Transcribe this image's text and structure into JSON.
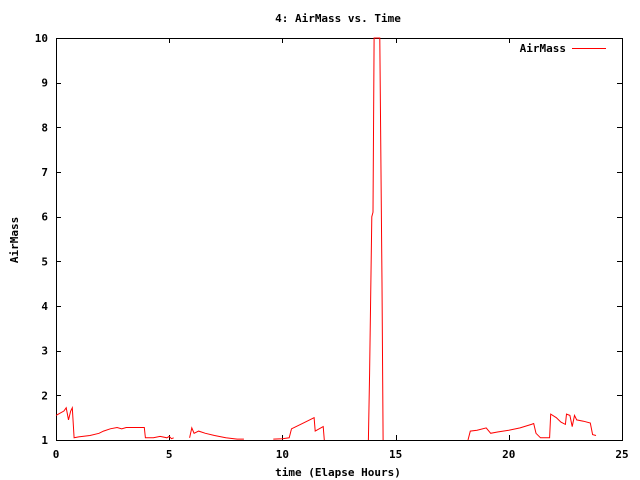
{
  "chart_data": {
    "type": "line",
    "title": "4: AirMass vs. Time",
    "xlabel": "time (Elapse Hours)",
    "ylabel": "AirMass",
    "xlim": [
      0,
      25
    ],
    "ylim": [
      1,
      10
    ],
    "xticks": [
      0,
      5,
      10,
      15,
      20,
      25
    ],
    "yticks": [
      1,
      2,
      3,
      4,
      5,
      6,
      7,
      8,
      9,
      10
    ],
    "grid": false,
    "legend": "top-right",
    "series": [
      {
        "name": "AirMass",
        "color": "#ff0000",
        "segments": [
          [
            [
              0.0,
              1.55
            ],
            [
              0.35,
              1.65
            ],
            [
              0.45,
              1.72
            ],
            [
              0.55,
              1.45
            ],
            [
              0.65,
              1.65
            ],
            [
              0.72,
              1.72
            ],
            [
              0.8,
              1.05
            ],
            [
              1.0,
              1.07
            ],
            [
              1.5,
              1.1
            ],
            [
              1.9,
              1.15
            ],
            [
              2.1,
              1.2
            ],
            [
              2.4,
              1.25
            ],
            [
              2.7,
              1.28
            ],
            [
              2.9,
              1.25
            ],
            [
              3.1,
              1.28
            ],
            [
              3.9,
              1.28
            ],
            [
              3.95,
              1.05
            ],
            [
              4.3,
              1.05
            ],
            [
              4.6,
              1.08
            ],
            [
              4.9,
              1.05
            ],
            [
              5.0,
              1.08
            ],
            [
              5.1,
              1.03
            ],
            [
              5.2,
              1.05
            ]
          ],
          [
            [
              5.9,
              1.05
            ],
            [
              6.0,
              1.27
            ],
            [
              6.1,
              1.15
            ],
            [
              6.3,
              1.2
            ],
            [
              6.6,
              1.15
            ],
            [
              7.0,
              1.1
            ],
            [
              7.5,
              1.05
            ],
            [
              8.0,
              1.02
            ],
            [
              8.3,
              1.02
            ]
          ],
          [
            [
              9.6,
              1.02
            ],
            [
              10.0,
              1.03
            ],
            [
              10.3,
              1.05
            ],
            [
              10.4,
              1.25
            ],
            [
              10.8,
              1.35
            ],
            [
              11.2,
              1.45
            ],
            [
              11.4,
              1.5
            ],
            [
              11.45,
              1.2
            ],
            [
              11.8,
              1.3
            ],
            [
              11.85,
              1.0
            ]
          ],
          [
            [
              13.8,
              1.0
            ],
            [
              13.85,
              2.5
            ],
            [
              13.95,
              6.0
            ],
            [
              14.0,
              6.1
            ],
            [
              14.05,
              10.0
            ],
            [
              14.3,
              10.0
            ],
            [
              14.4,
              4.5
            ],
            [
              14.45,
              1.0
            ]
          ],
          [
            [
              18.2,
              1.0
            ],
            [
              18.3,
              1.2
            ],
            [
              18.6,
              1.22
            ],
            [
              19.0,
              1.27
            ],
            [
              19.2,
              1.15
            ],
            [
              19.5,
              1.18
            ],
            [
              20.0,
              1.22
            ],
            [
              20.5,
              1.27
            ],
            [
              21.0,
              1.35
            ],
            [
              21.1,
              1.37
            ],
            [
              21.2,
              1.15
            ],
            [
              21.4,
              1.05
            ],
            [
              21.8,
              1.05
            ],
            [
              21.85,
              1.58
            ],
            [
              22.1,
              1.5
            ],
            [
              22.3,
              1.4
            ],
            [
              22.5,
              1.35
            ],
            [
              22.55,
              1.58
            ],
            [
              22.7,
              1.55
            ],
            [
              22.8,
              1.3
            ],
            [
              22.9,
              1.55
            ],
            [
              23.0,
              1.45
            ],
            [
              23.3,
              1.42
            ],
            [
              23.6,
              1.38
            ],
            [
              23.7,
              1.12
            ],
            [
              23.85,
              1.1
            ]
          ]
        ]
      }
    ]
  }
}
